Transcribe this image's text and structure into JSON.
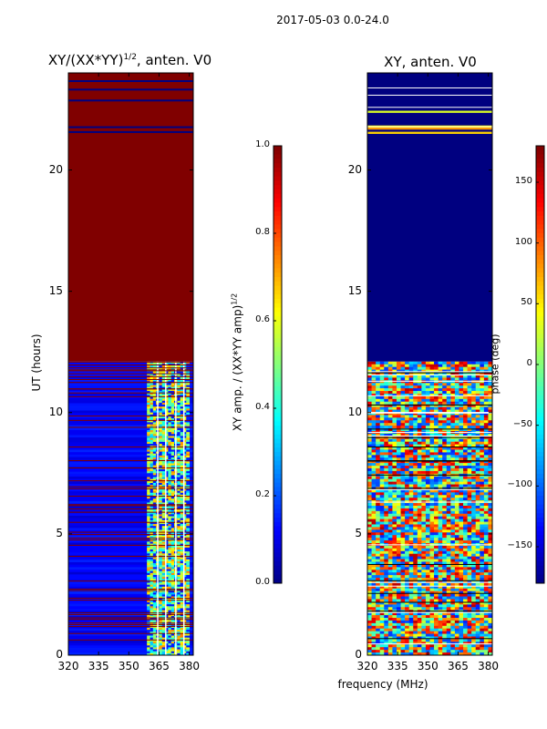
{
  "suptitle": "2017-05-03 0.0-24.0",
  "x_label": "frequency (MHz)",
  "y_label": "UT (hours)",
  "colors": {
    "dark_red": "#800000",
    "dark_blue": "#000080",
    "line": "#000000"
  },
  "chart_data": [
    {
      "type": "heatmap",
      "title": "XY/(XX*YY)",
      "title_sup": "1/2",
      "title_tail": ", anten. V0",
      "xlim": [
        320,
        382
      ],
      "ylim": [
        0,
        24
      ],
      "x_ticks": [
        "320",
        "335",
        "350",
        "365",
        "380"
      ],
      "x_tick_values": [
        320,
        335,
        350,
        365,
        380
      ],
      "y_ticks": [
        "0",
        "5",
        "10",
        "15",
        "20"
      ],
      "y_tick_values": [
        0,
        5,
        10,
        15,
        20
      ],
      "colorbar": {
        "label": "XY amp. / (XX*YY amp)",
        "label_sup": "1/2",
        "range": [
          0.0,
          1.0
        ],
        "ticks": [
          "0.0",
          "0.2",
          "0.4",
          "0.6",
          "0.8",
          "1.0"
        ],
        "tick_values": [
          0.0,
          0.2,
          0.4,
          0.6,
          0.8,
          1.0
        ]
      },
      "regions": [
        {
          "ut_range": [
            12.1,
            24.0
          ],
          "value": 1.0,
          "description": "saturated amplitude"
        },
        {
          "ut_range": [
            0.0,
            12.1
          ],
          "value": 0.1,
          "description": "low amplitude"
        },
        {
          "ut_range": [
            0.0,
            12.1
          ],
          "freq_range": [
            359,
            380
          ],
          "value": 0.5,
          "description": "mixed amplitude band"
        }
      ]
    },
    {
      "type": "heatmap",
      "title": "XY, anten. V0",
      "xlim": [
        320,
        382
      ],
      "ylim": [
        0,
        24
      ],
      "x_ticks": [
        "320",
        "335",
        "350",
        "365",
        "380"
      ],
      "x_tick_values": [
        320,
        335,
        350,
        365,
        380
      ],
      "y_ticks": [
        "0",
        "5",
        "10",
        "15",
        "20"
      ],
      "y_tick_values": [
        0,
        5,
        10,
        15,
        20
      ],
      "colorbar": {
        "label": "phase (deg)",
        "range": [
          -180,
          180
        ],
        "ticks": [
          "−150",
          "−100",
          "−50",
          "0",
          "50",
          "100",
          "150"
        ],
        "tick_values": [
          -150,
          -100,
          -50,
          0,
          50,
          100,
          150
        ]
      },
      "regions": [
        {
          "ut_range": [
            12.1,
            21.4
          ],
          "value": -180,
          "description": "uniform phase"
        },
        {
          "ut_range": [
            0.0,
            12.1
          ],
          "value": "mixed",
          "description": "noisy phase"
        }
      ]
    }
  ]
}
